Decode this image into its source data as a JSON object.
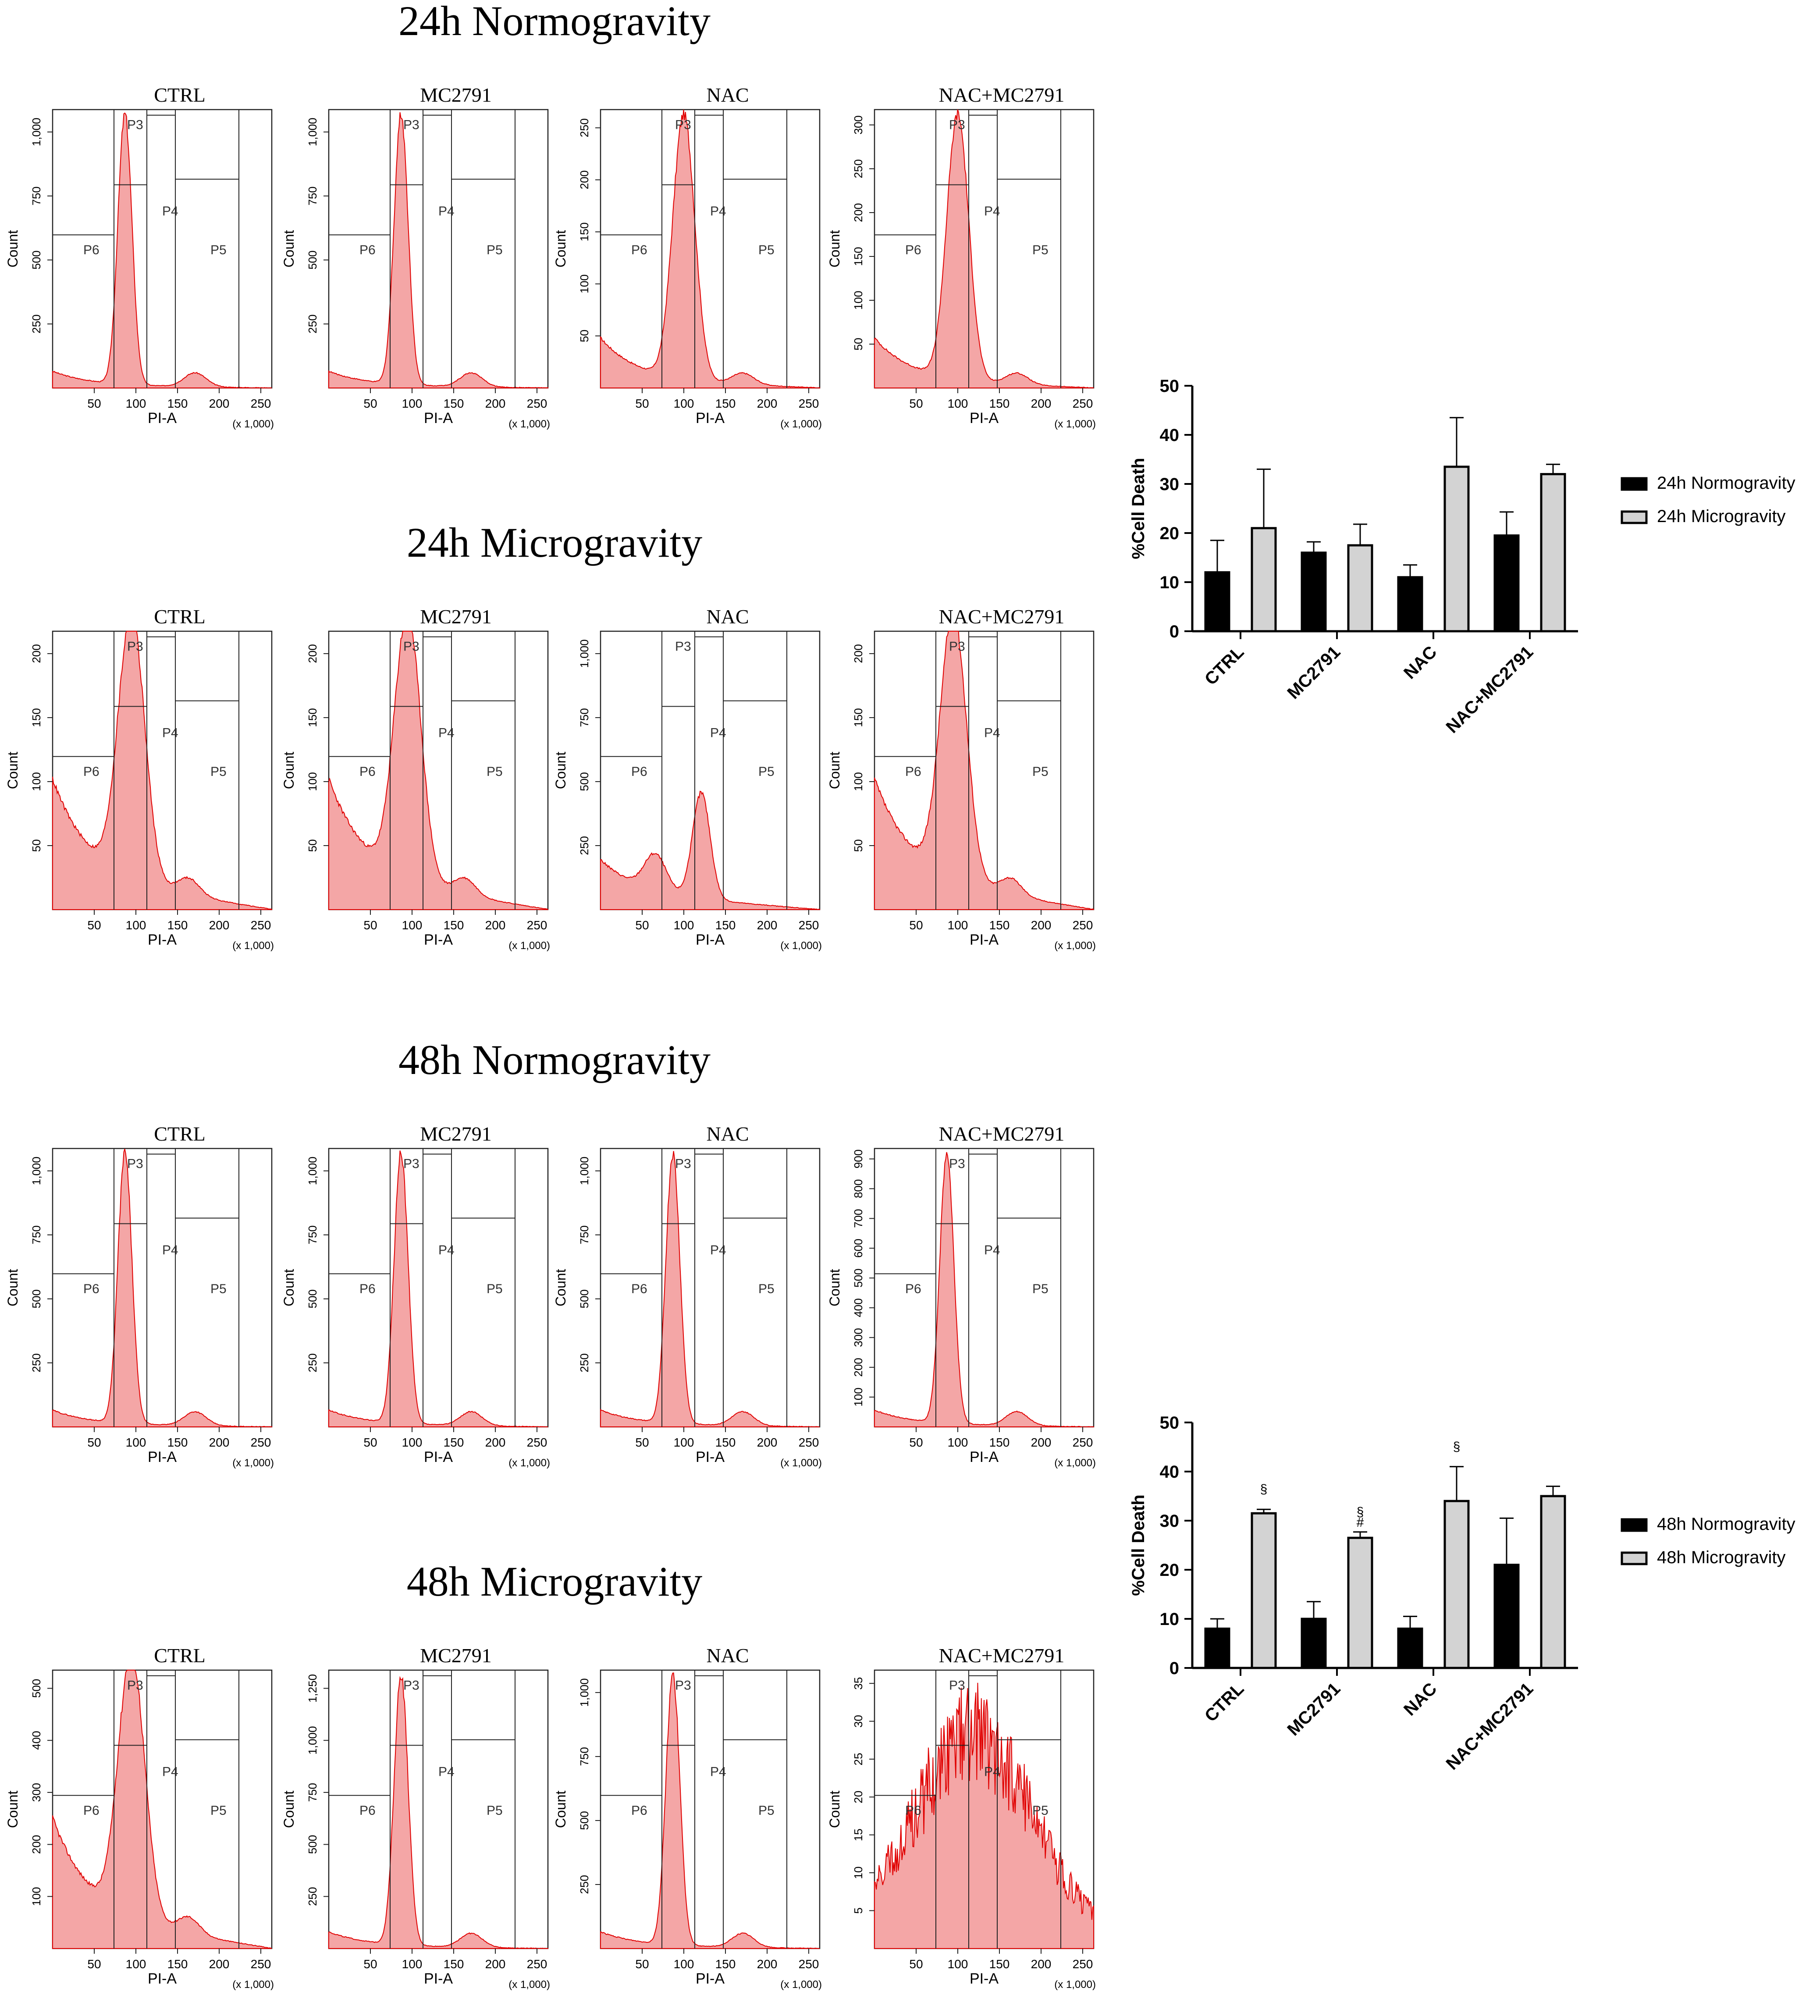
{
  "figure": {
    "colors": {
      "histogram_fill": "#f4a6a6",
      "histogram_line": "#e00000",
      "axis": "#222222",
      "black_bar": "#000000",
      "grey_bar": "#d3d3d3"
    },
    "histogram_axis": {
      "x_label": "PI-A",
      "x_scale_note": "(x 1,000)",
      "y_label": "Count",
      "x_ticks": [
        "50",
        "100",
        "150",
        "200",
        "250"
      ]
    },
    "sections": [
      {
        "title": "24h Normogravity",
        "panels": [
          {
            "title": "CTRL",
            "y_ticks": [
              "250",
              "500",
              "750",
              "1,000"
            ],
            "gate_labels": [
              "P3",
              "P4",
              "P5",
              "P6"
            ]
          },
          {
            "title": "MC2791",
            "y_ticks": [
              "250",
              "500",
              "750",
              "1,000"
            ],
            "gate_labels": [
              "P3",
              "P4",
              "P5",
              "P6"
            ]
          },
          {
            "title": "NAC",
            "y_ticks": [
              "50",
              "100",
              "150",
              "200",
              "250"
            ],
            "gate_labels": [
              "P3",
              "P4",
              "P5",
              "P6"
            ]
          },
          {
            "title": "NAC+MC2791",
            "y_ticks": [
              "50",
              "100",
              "150",
              "200",
              "250",
              "300"
            ],
            "gate_labels": [
              "P3",
              "P4",
              "P5",
              "P6"
            ]
          }
        ]
      },
      {
        "title": "24h Microgravity",
        "panels": [
          {
            "title": "CTRL",
            "y_ticks": [
              "50",
              "100",
              "150",
              "200"
            ],
            "gate_labels": [
              "P3",
              "P4",
              "P5",
              "P6"
            ]
          },
          {
            "title": "MC2791",
            "y_ticks": [
              "50",
              "100",
              "150",
              "200"
            ],
            "gate_labels": [
              "P3",
              "P4",
              "P5",
              "P6"
            ]
          },
          {
            "title": "NAC",
            "y_ticks": [
              "250",
              "500",
              "750",
              "1,000"
            ],
            "gate_labels": [
              "P3",
              "P4",
              "P5",
              "P6"
            ]
          },
          {
            "title": "NAC+MC2791",
            "y_ticks": [
              "50",
              "100",
              "150",
              "200"
            ],
            "gate_labels": [
              "P3",
              "P4",
              "P5",
              "P6"
            ]
          }
        ]
      },
      {
        "title": "48h Normogravity",
        "panels": [
          {
            "title": "CTRL",
            "y_ticks": [
              "250",
              "500",
              "750",
              "1,000"
            ],
            "gate_labels": [
              "P3",
              "P4",
              "P5",
              "P6"
            ]
          },
          {
            "title": "MC2791",
            "y_ticks": [
              "250",
              "500",
              "750",
              "1,000"
            ],
            "gate_labels": [
              "P3",
              "P4",
              "P5",
              "P6"
            ]
          },
          {
            "title": "NAC",
            "y_ticks": [
              "250",
              "500",
              "750",
              "1,000"
            ],
            "gate_labels": [
              "P3",
              "P4",
              "P5",
              "P6"
            ]
          },
          {
            "title": "NAC+MC2791",
            "y_ticks": [
              "100",
              "200",
              "300",
              "400",
              "500",
              "600",
              "700",
              "800",
              "900"
            ],
            "gate_labels": [
              "P3",
              "P4",
              "P5",
              "P6"
            ]
          }
        ]
      },
      {
        "title": "48h Microgravity",
        "panels": [
          {
            "title": "CTRL",
            "y_ticks": [
              "100",
              "200",
              "300",
              "400",
              "500"
            ],
            "gate_labels": [
              "P3",
              "P4",
              "P5",
              "P6"
            ]
          },
          {
            "title": "MC2791",
            "y_ticks": [
              "250",
              "500",
              "750",
              "1,000",
              "1,250"
            ],
            "gate_labels": [
              "P3",
              "P4",
              "P5",
              "P6"
            ]
          },
          {
            "title": "NAC",
            "y_ticks": [
              "250",
              "500",
              "750",
              "1,000"
            ],
            "gate_labels": [
              "P3",
              "P4",
              "P5",
              "P6"
            ]
          },
          {
            "title": "NAC+MC2791",
            "y_ticks": [
              "5",
              "10",
              "15",
              "20",
              "25",
              "30",
              "35"
            ],
            "gate_labels": [
              "P3",
              "P4",
              "P5",
              "P6"
            ]
          }
        ]
      }
    ]
  },
  "chart_data": [
    {
      "type": "bar",
      "title": "24h",
      "xlabel": "",
      "ylabel": "%Cell Death",
      "ylim": [
        0,
        50
      ],
      "yticks": [
        0,
        10,
        20,
        30,
        40,
        50
      ],
      "categories": [
        "CTRL",
        "MC2791",
        "NAC",
        "NAC+MC2791"
      ],
      "series": [
        {
          "name": "24h Normogravity",
          "values": [
            12,
            16,
            11,
            19.5
          ],
          "errors": [
            6.5,
            2.2,
            2.5,
            4.8
          ]
        },
        {
          "name": "24h Microgravity",
          "values": [
            21,
            17.5,
            33.5,
            32
          ],
          "errors": [
            12,
            4.3,
            10,
            2
          ]
        }
      ],
      "annotations": []
    },
    {
      "type": "bar",
      "title": "48h",
      "xlabel": "",
      "ylabel": "%Cell Death",
      "ylim": [
        0,
        50
      ],
      "yticks": [
        0,
        10,
        20,
        30,
        40,
        50
      ],
      "categories": [
        "CTRL",
        "MC2791",
        "NAC",
        "NAC+MC2791"
      ],
      "series": [
        {
          "name": "48h Normogravity",
          "values": [
            8,
            10,
            8,
            21
          ],
          "errors": [
            2,
            3.5,
            2.5,
            9.5
          ]
        },
        {
          "name": "48h Microgravity",
          "values": [
            31.5,
            26.5,
            34,
            35
          ],
          "errors": [
            0.8,
            1.2,
            7,
            2
          ]
        }
      ],
      "annotations": [
        {
          "category": "CTRL",
          "series": 1,
          "text": "§"
        },
        {
          "category": "MC2791",
          "series": 1,
          "text": "§"
        },
        {
          "category": "MC2791",
          "series": 1,
          "text": "#"
        },
        {
          "category": "NAC",
          "series": 1,
          "text": "§"
        }
      ]
    }
  ]
}
